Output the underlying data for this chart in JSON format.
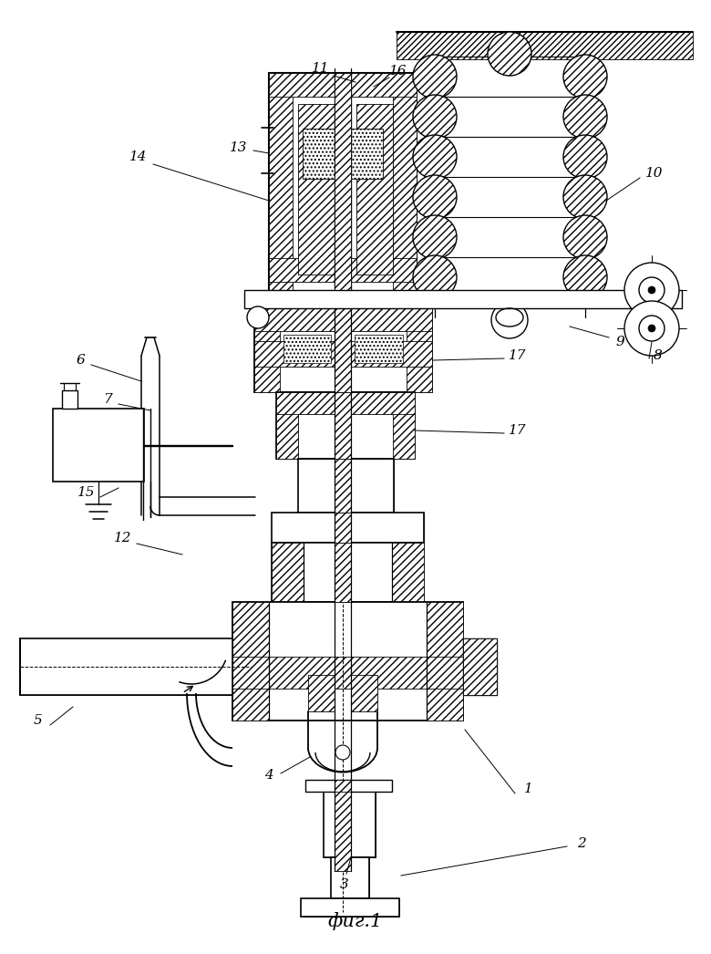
{
  "title": "фиг.1",
  "fig_width": 7.8,
  "fig_height": 10.46,
  "bg": "#ffffff"
}
